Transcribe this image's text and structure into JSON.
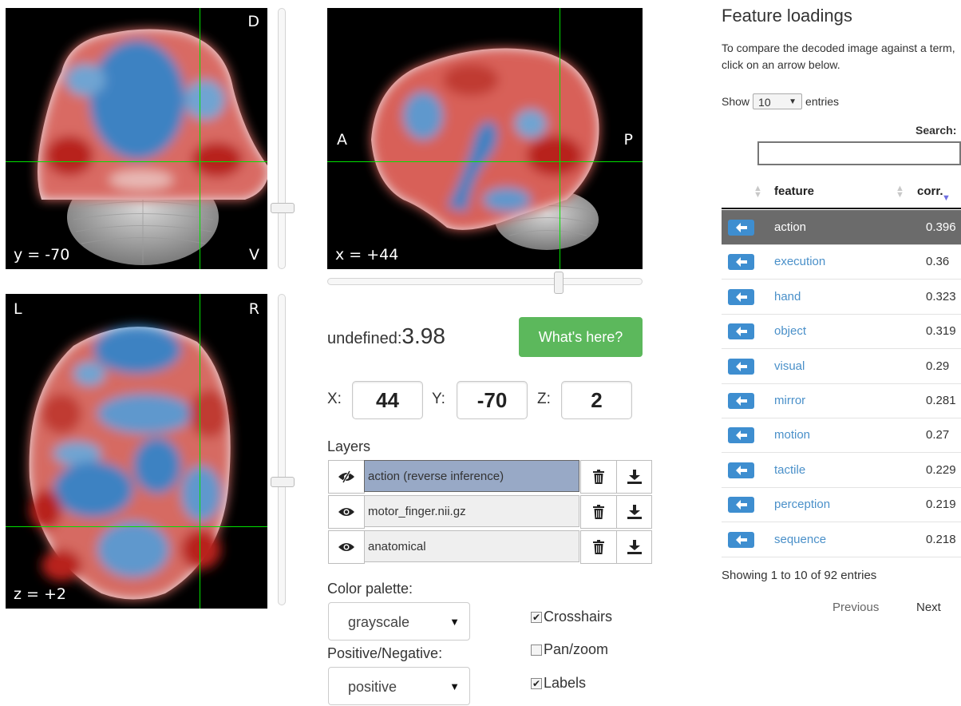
{
  "views": {
    "coronal": {
      "top_right": "D",
      "bottom_right": "V",
      "coord": "y = -70"
    },
    "sagittal": {
      "left": "A",
      "right": "P",
      "coord": "x = +44"
    },
    "axial": {
      "top_left": "L",
      "top_right": "R",
      "coord": "z = +2"
    }
  },
  "value": {
    "name": "undefined:",
    "number": "3.98"
  },
  "whats_here_label": "What's here?",
  "coords": {
    "x_label": "X:",
    "x": "44",
    "y_label": "Y:",
    "y": "-70",
    "z_label": "Z:",
    "z": "2"
  },
  "layers": {
    "title": "Layers",
    "items": [
      {
        "name": "action (reverse inference)",
        "active": true
      },
      {
        "name": "motor_finger.nii.gz",
        "active": false
      },
      {
        "name": "anatomical",
        "active": false
      }
    ]
  },
  "color_palette": {
    "label": "Color palette:",
    "value": "grayscale"
  },
  "pos_neg": {
    "label": "Positive/Negative:",
    "value": "positive"
  },
  "options": [
    {
      "label": "Crosshairs",
      "checked": true
    },
    {
      "label": "Pan/zoom",
      "checked": false
    },
    {
      "label": "Labels",
      "checked": true
    }
  ],
  "feature_panel": {
    "title": "Feature loadings",
    "description": "To compare the decoded image against a term, click on an arrow below.",
    "show_label": "Show",
    "show_value": "10",
    "entries_label": "entries",
    "search_label": "Search:",
    "col_feature": "feature",
    "col_corr": "corr.",
    "rows": [
      {
        "feature": "action",
        "corr": "0.396"
      },
      {
        "feature": "execution",
        "corr": "0.36"
      },
      {
        "feature": "hand",
        "corr": "0.323"
      },
      {
        "feature": "object",
        "corr": "0.319"
      },
      {
        "feature": "visual",
        "corr": "0.29"
      },
      {
        "feature": "mirror",
        "corr": "0.281"
      },
      {
        "feature": "motion",
        "corr": "0.27"
      },
      {
        "feature": "tactile",
        "corr": "0.229"
      },
      {
        "feature": "perception",
        "corr": "0.219"
      },
      {
        "feature": "sequence",
        "corr": "0.218"
      }
    ],
    "showing": "Showing 1 to 10 of 92 entries",
    "previous": "Previous",
    "next": "Next"
  },
  "colors": {
    "positive": "#c9423a",
    "negative": "#3f7fbf",
    "crosshair": "#00e000",
    "button_green": "#5cb85c",
    "arrow_button": "#3e8ed0"
  }
}
